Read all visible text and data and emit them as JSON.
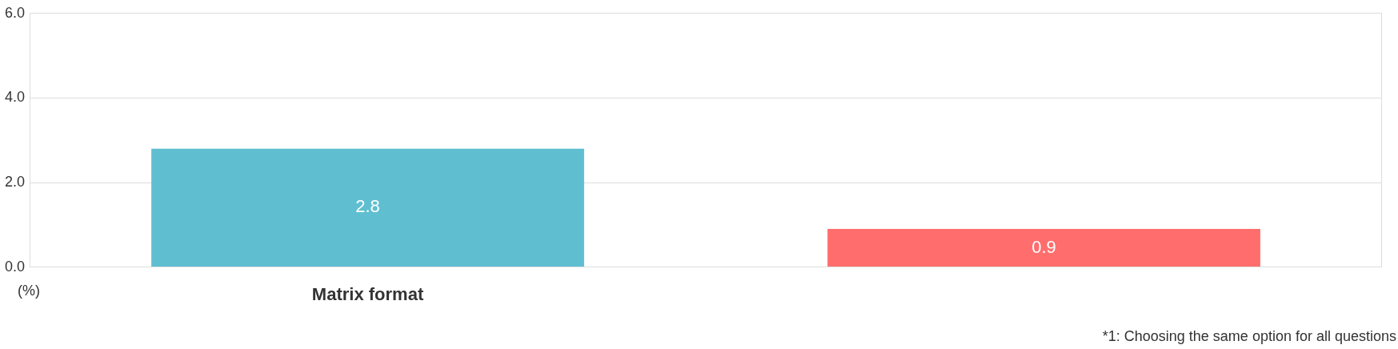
{
  "chart_data": {
    "type": "bar",
    "categories": [
      "Matrix format",
      null
    ],
    "series": [
      {
        "colors": [
          "#5fbfd1",
          "#ff6d6d"
        ],
        "values": [
          2.8,
          0.9
        ]
      }
    ],
    "ylabel": "(%)",
    "ylim": [
      0,
      6
    ],
    "yticks": [
      {
        "value": 0,
        "label": "0.0"
      },
      {
        "value": 2,
        "label": "2.0"
      },
      {
        "value": 4,
        "label": "4.0"
      },
      {
        "value": 6,
        "label": "6.0"
      }
    ],
    "grid": "y",
    "legend": false,
    "data_labels": true,
    "annotations": [
      "*1: Choosing the same option for all questions"
    ]
  }
}
